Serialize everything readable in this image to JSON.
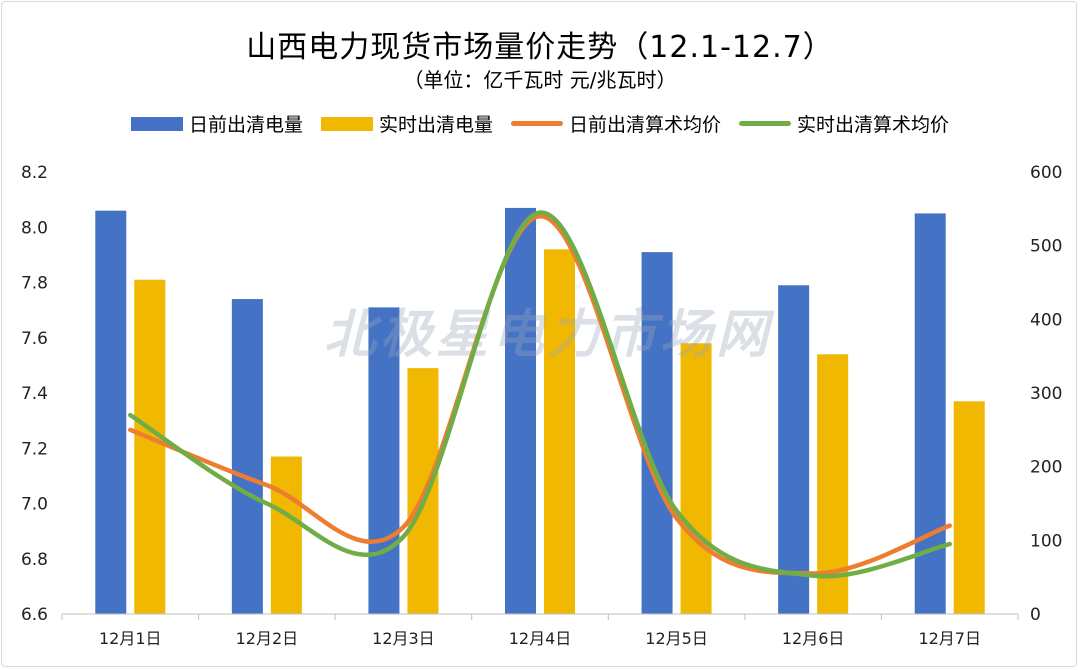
{
  "title": "山西电力现货市场量价走势（12.1-12.7）",
  "subtitle": "（单位：亿千瓦时 元/兆瓦时）",
  "watermark": "北极星电力市场网",
  "colors": {
    "bar_dayahead": "#4472c4",
    "bar_realtime": "#f0b800",
    "line_dayahead": "#ed7d31",
    "line_realtime": "#70ad47"
  },
  "legend": [
    {
      "label": "日前出清电量",
      "kind": "bar",
      "color": "#4472c4"
    },
    {
      "label": "实时出清电量",
      "kind": "bar",
      "color": "#f0b800"
    },
    {
      "label": "日前出清算术均价",
      "kind": "line",
      "color": "#ed7d31"
    },
    {
      "label": "实时出清算术均价",
      "kind": "line",
      "color": "#70ad47"
    }
  ],
  "chart_data": {
    "type": "bar",
    "title": "山西电力现货市场量价走势（12.1-12.7）",
    "subtitle": "（单位：亿千瓦时 元/兆瓦时）",
    "categories": [
      "12月1日",
      "12月2日",
      "12月3日",
      "12月4日",
      "12月5日",
      "12月6日",
      "12月7日"
    ],
    "series": [
      {
        "name": "日前出清电量",
        "type": "bar",
        "axis": "left",
        "values": [
          8.06,
          7.74,
          7.71,
          8.07,
          7.91,
          7.79,
          8.05
        ]
      },
      {
        "name": "实时出清电量",
        "type": "bar",
        "axis": "left",
        "values": [
          7.81,
          7.17,
          7.49,
          7.92,
          7.58,
          7.54,
          7.37
        ]
      },
      {
        "name": "日前出清算术均价",
        "type": "line",
        "axis": "right",
        "values": [
          250,
          175,
          118,
          540,
          130,
          55,
          120
        ]
      },
      {
        "name": "实时出清算术均价",
        "type": "line",
        "axis": "right",
        "values": [
          270,
          150,
          105,
          545,
          140,
          52,
          95
        ]
      }
    ],
    "ylim_left": [
      6.6,
      8.2
    ],
    "yticks_left": [
      "8.2",
      "8.0",
      "7.8",
      "7.6",
      "7.4",
      "7.2",
      "7.0",
      "6.8",
      "6.6"
    ],
    "ylim_right": [
      0,
      600
    ],
    "yticks_right": [
      "600",
      "500",
      "400",
      "300",
      "200",
      "100",
      "0"
    ],
    "grid": false,
    "legend_position": "top"
  }
}
